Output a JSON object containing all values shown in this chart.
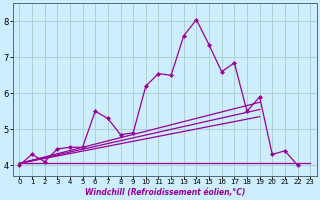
{
  "xlabel": "Windchill (Refroidissement éolien,°C)",
  "background_color": "#cceeff",
  "grid_color": "#aacccc",
  "line_color": "#990099",
  "xlim": [
    -0.5,
    23.5
  ],
  "ylim": [
    3.7,
    8.5
  ],
  "xticks": [
    0,
    1,
    2,
    3,
    4,
    5,
    6,
    7,
    8,
    9,
    10,
    11,
    12,
    13,
    14,
    15,
    16,
    17,
    18,
    19,
    20,
    21,
    22,
    23
  ],
  "yticks": [
    4,
    5,
    6,
    7,
    8
  ],
  "main_series": [
    4.0,
    4.3,
    4.1,
    4.45,
    4.5,
    4.5,
    5.5,
    5.3,
    4.85,
    4.9,
    6.2,
    6.55,
    6.5,
    7.6,
    8.05,
    7.35,
    6.6,
    6.85,
    5.5,
    5.9,
    4.3,
    4.4,
    4.0,
    null
  ],
  "flat_line": [
    [
      0,
      23
    ],
    [
      4.05,
      4.05
    ]
  ],
  "trend_lines": [
    [
      [
        0,
        19
      ],
      [
        4.05,
        5.35
      ]
    ],
    [
      [
        0,
        19
      ],
      [
        4.05,
        5.55
      ]
    ],
    [
      [
        0,
        19
      ],
      [
        4.05,
        5.75
      ]
    ]
  ],
  "marker": "D",
  "markersize": 2.5,
  "linewidth": 0.9,
  "tick_fontsize_x": 5,
  "tick_fontsize_y": 6,
  "xlabel_fontsize": 5.5
}
